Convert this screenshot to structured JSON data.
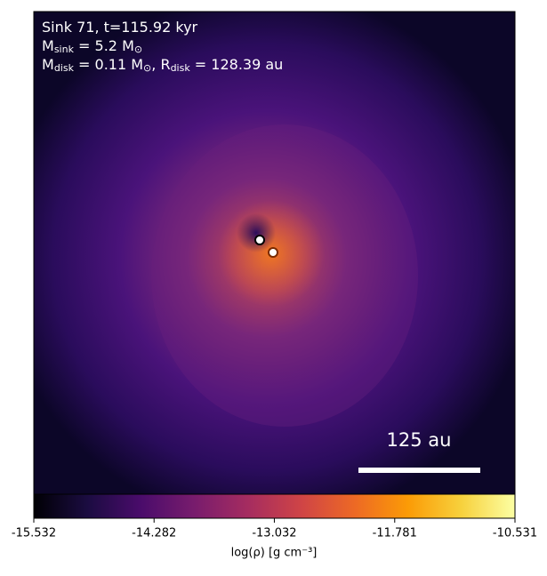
{
  "chart_data": {
    "type": "image",
    "annotations": [
      [
        {
          "text": "Sink 71, t=115.92 kyr"
        }
      ],
      [
        {
          "text": "M"
        },
        {
          "sub": "sink"
        },
        {
          "text": " = 5.2 M"
        },
        {
          "sub": "⊙"
        }
      ],
      [
        {
          "text": "M"
        },
        {
          "sub": "disk"
        },
        {
          "text": " = 0.11 M"
        },
        {
          "sub": "⊙"
        },
        {
          "text": ", R"
        },
        {
          "sub": "disk"
        },
        {
          "text": " = 128.39 au"
        }
      ]
    ],
    "scale_bar": "125 au",
    "colorbar": {
      "label": "log(ρ) [g cm⁻³]",
      "lim": [
        -15.532,
        -10.531
      ],
      "ticks": [
        -15.532,
        -14.282,
        -13.032,
        -11.781,
        -10.531
      ],
      "colormap": [
        "#000004",
        "#1b0c41",
        "#4a0c6b",
        "#781c6d",
        "#a52c60",
        "#cf4446",
        "#ed6925",
        "#fb9b06",
        "#f7d13d",
        "#fcffa4"
      ]
    }
  }
}
